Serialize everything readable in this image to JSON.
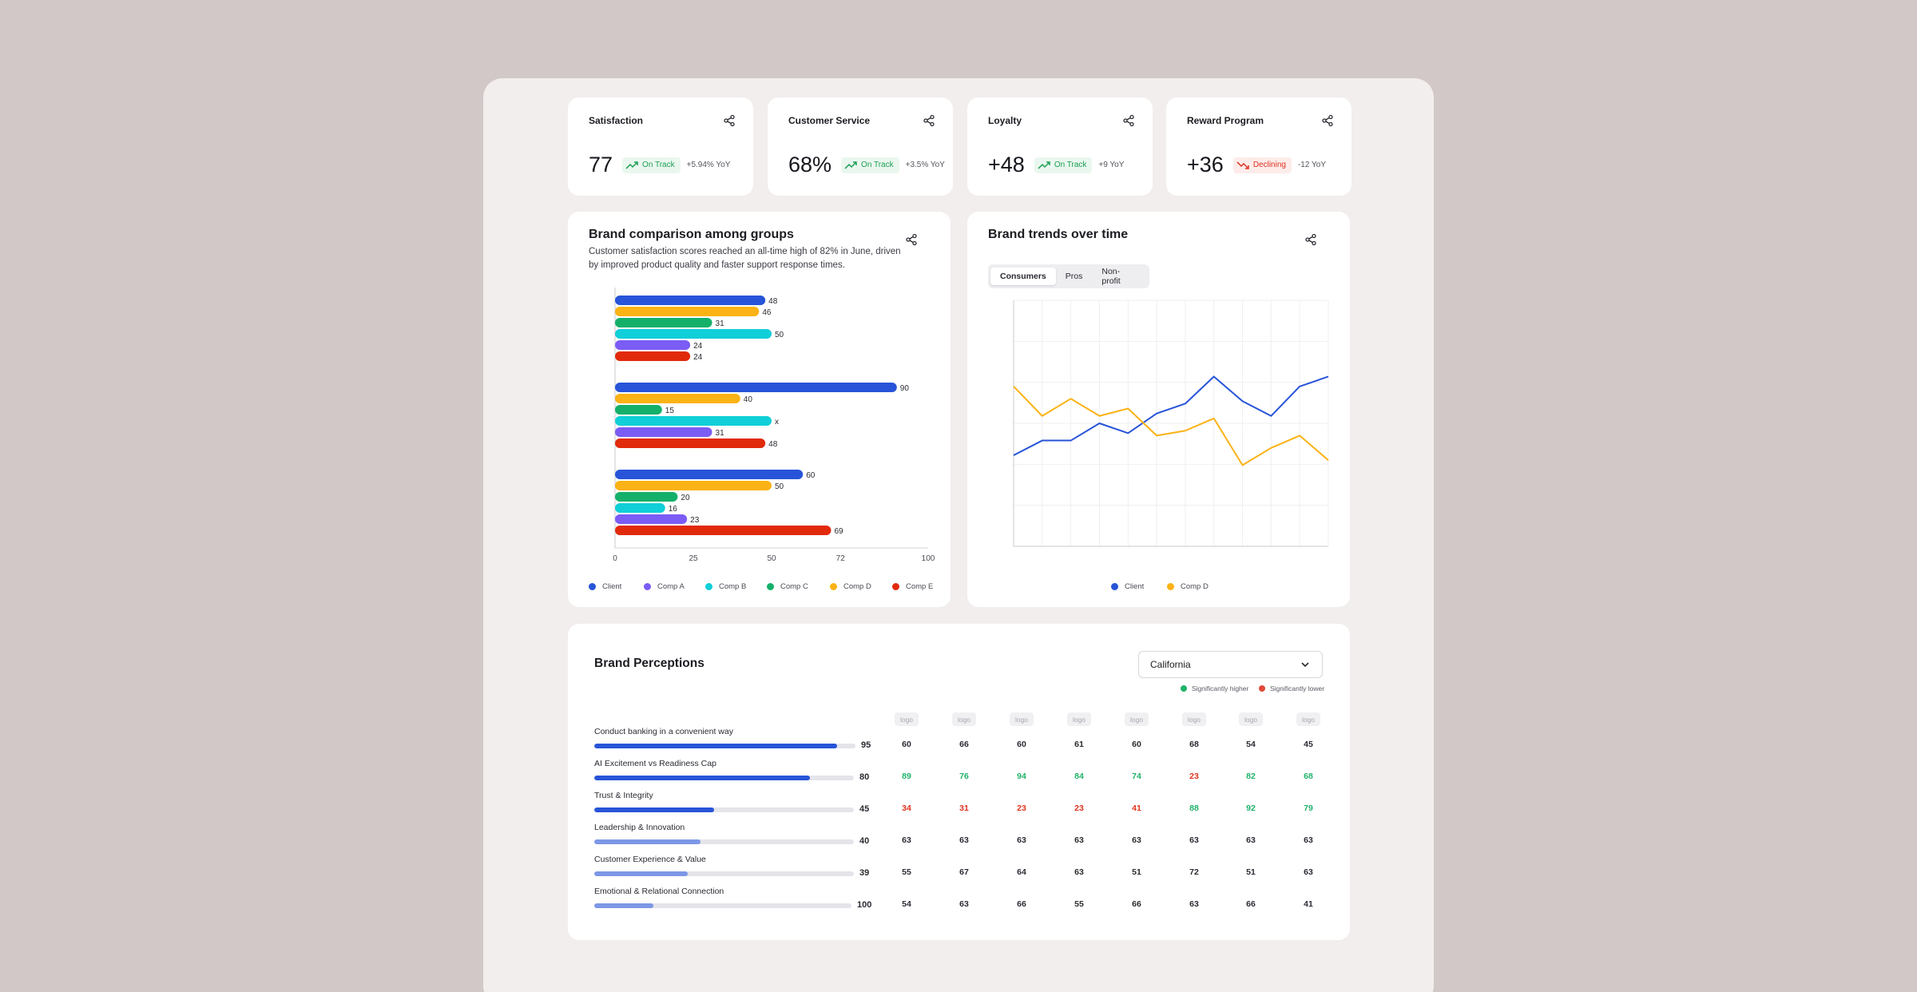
{
  "kpis": [
    {
      "title": "Satisfaction",
      "value": "77",
      "status": "On Track",
      "trend": "up",
      "yoy": "+5.94% YoY"
    },
    {
      "title": "Customer Service",
      "value": "68%",
      "status": "On Track",
      "trend": "up",
      "yoy": "+3.5% YoY"
    },
    {
      "title": "Loyalty",
      "value": "+48",
      "status": "On Track",
      "trend": "up",
      "yoy": "+9 YoY"
    },
    {
      "title": "Reward Program",
      "value": "+36",
      "status": "Declining",
      "trend": "down",
      "yoy": "-12 YoY"
    }
  ],
  "brand_comparison": {
    "title": "Brand comparison among groups",
    "subtitle_line1": "Customer satisfaction scores reached an all-time high of 82% in June, driven",
    "subtitle_line2": "by improved product quality and faster support response times.",
    "legend": [
      "Client",
      "Comp A",
      "Comp B",
      "Comp C",
      "Comp D",
      "Comp E"
    ]
  },
  "brand_trends": {
    "title": "Brand trends over time",
    "tabs": [
      "Consumers",
      "Pros",
      "Non-profit"
    ],
    "active_tab": "Consumers",
    "legend": [
      "Client",
      "Comp D"
    ]
  },
  "colors": {
    "client": "#2754d8",
    "comp_d": "#fbb215",
    "comp_c": "#14b06a",
    "comp_b": "#10cfd8",
    "comp_a": "#7b5cf5",
    "comp_e": "#e12a0c"
  },
  "chart_data": [
    {
      "type": "bar",
      "orientation": "horizontal",
      "xlim": [
        0,
        100
      ],
      "x_ticks": [
        "0",
        "25",
        "50",
        "72",
        "100"
      ],
      "groups": [
        {
          "series": [
            "Client",
            "Comp D",
            "Comp C",
            "Comp B",
            "Comp A",
            "Comp E"
          ],
          "values": [
            48,
            46,
            31,
            50,
            24,
            24
          ],
          "labels": [
            "48",
            "46",
            "31",
            "50",
            "24",
            "24"
          ]
        },
        {
          "series": [
            "Client",
            "Comp D",
            "Comp C",
            "Comp B",
            "Comp A",
            "Comp E"
          ],
          "values": [
            90,
            40,
            15,
            50,
            31,
            48
          ],
          "labels": [
            "90",
            "40",
            "15",
            "x",
            "31",
            "48"
          ]
        },
        {
          "series": [
            "Client",
            "Comp D",
            "Comp C",
            "Comp B",
            "Comp A",
            "Comp E"
          ],
          "values": [
            60,
            50,
            20,
            16,
            23,
            69
          ],
          "labels": [
            "60",
            "50",
            "20",
            "16",
            "23",
            "69"
          ]
        }
      ]
    },
    {
      "type": "line",
      "x": [
        1,
        2,
        3,
        4,
        5,
        6,
        7,
        8,
        9,
        10,
        11,
        12
      ],
      "ylim": [
        0,
        100
      ],
      "grid": true,
      "series": [
        {
          "name": "Client",
          "values": [
            37,
            43,
            43,
            50,
            46,
            54,
            58,
            69,
            59,
            53,
            65,
            69
          ]
        },
        {
          "name": "Comp D",
          "values": [
            65,
            53,
            60,
            53,
            56,
            45,
            47,
            52,
            33,
            40,
            45,
            35
          ]
        }
      ]
    }
  ],
  "perceptions": {
    "title": "Brand Perceptions",
    "region": "California",
    "legend_higher": "Significantly higher",
    "legend_lower": "Significantly lower",
    "logo_label": "logo",
    "rows": [
      {
        "label": "Conduct banking in a convenient way",
        "score": "95",
        "fill": 0.93,
        "tone": "strong",
        "cells": [
          [
            "60",
            "n"
          ],
          [
            "66",
            "n"
          ],
          [
            "60",
            "n"
          ],
          [
            "61",
            "n"
          ],
          [
            "60",
            "n"
          ],
          [
            "68",
            "n"
          ],
          [
            "54",
            "n"
          ],
          [
            "45",
            "n"
          ]
        ]
      },
      {
        "label": "AI Excitement vs Readiness Cap",
        "score": "80",
        "fill": 0.83,
        "tone": "strong",
        "cells": [
          [
            "89",
            "hi"
          ],
          [
            "76",
            "hi"
          ],
          [
            "94",
            "hi"
          ],
          [
            "84",
            "hi"
          ],
          [
            "74",
            "hi"
          ],
          [
            "23",
            "lo"
          ],
          [
            "82",
            "hi"
          ],
          [
            "68",
            "hi"
          ]
        ]
      },
      {
        "label": "Trust & Integrity",
        "score": "45",
        "fill": 0.46,
        "tone": "strong",
        "cells": [
          [
            "34",
            "lo"
          ],
          [
            "31",
            "lo"
          ],
          [
            "23",
            "lo"
          ],
          [
            "23",
            "lo"
          ],
          [
            "41",
            "lo"
          ],
          [
            "88",
            "hi"
          ],
          [
            "92",
            "hi"
          ],
          [
            "79",
            "hi"
          ]
        ]
      },
      {
        "label": "Leadership & Innovation",
        "score": "40",
        "fill": 0.41,
        "tone": "light",
        "cells": [
          [
            "63",
            "n"
          ],
          [
            "63",
            "n"
          ],
          [
            "63",
            "n"
          ],
          [
            "63",
            "n"
          ],
          [
            "63",
            "n"
          ],
          [
            "63",
            "n"
          ],
          [
            "63",
            "n"
          ],
          [
            "63",
            "n"
          ]
        ]
      },
      {
        "label": "Customer Experience & Value",
        "score": "39",
        "fill": 0.36,
        "tone": "light",
        "cells": [
          [
            "55",
            "n"
          ],
          [
            "67",
            "n"
          ],
          [
            "64",
            "n"
          ],
          [
            "63",
            "n"
          ],
          [
            "51",
            "n"
          ],
          [
            "72",
            "n"
          ],
          [
            "51",
            "n"
          ],
          [
            "63",
            "n"
          ]
        ]
      },
      {
        "label": "Emotional & Relational Connection",
        "score": "100",
        "fill": 0.23,
        "tone": "light",
        "cells": [
          [
            "54",
            "n"
          ],
          [
            "63",
            "n"
          ],
          [
            "66",
            "n"
          ],
          [
            "55",
            "n"
          ],
          [
            "66",
            "n"
          ],
          [
            "63",
            "n"
          ],
          [
            "66",
            "n"
          ],
          [
            "41",
            "n"
          ]
        ]
      }
    ]
  }
}
